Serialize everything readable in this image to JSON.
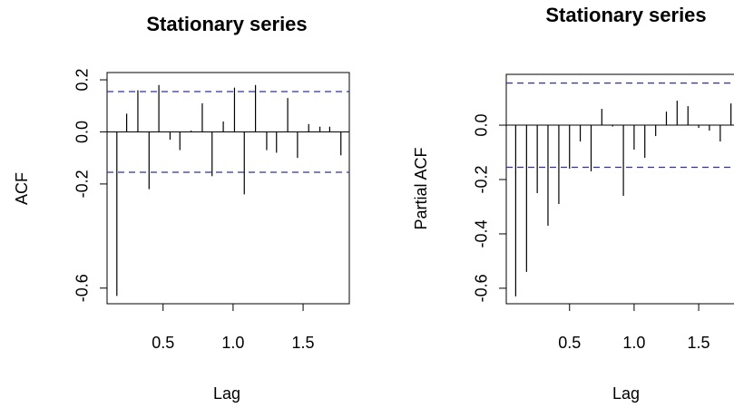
{
  "chart_data": [
    {
      "type": "stem",
      "title": "Stationary series",
      "x_label": "Lag",
      "y_label": "ACF",
      "color": "#000000",
      "bound_color": "#3030a0",
      "x": [
        0.17,
        0.24,
        0.32,
        0.4,
        0.47,
        0.55,
        0.62,
        0.7,
        0.78,
        0.85,
        0.93,
        1.01,
        1.08,
        1.16,
        1.24,
        1.31,
        1.39,
        1.46,
        1.54,
        1.62,
        1.69,
        1.77
      ],
      "values": [
        -0.63,
        0.07,
        0.16,
        -0.22,
        0.18,
        -0.03,
        -0.07,
        0.005,
        0.11,
        -0.17,
        0.04,
        0.17,
        -0.24,
        0.18,
        -0.07,
        -0.08,
        0.13,
        -0.1,
        0.03,
        0.02,
        0.02,
        -0.09
      ],
      "reference_lines": [
        0.155,
        -0.155
      ],
      "xlim": [
        0.1,
        1.83
      ],
      "ylim": [
        -0.66,
        0.228
      ],
      "xticks": [
        {
          "value": 0.5,
          "label": "0.5"
        },
        {
          "value": 1,
          "label": "1.0"
        },
        {
          "value": 1.5,
          "label": "1.5"
        }
      ],
      "yticks": [
        {
          "value": -0.6,
          "label": "-0.6"
        },
        {
          "value": -0.2,
          "label": "-0.2"
        },
        {
          "value": 0,
          "label": "0.0"
        },
        {
          "value": 0.2,
          "label": "0.2"
        }
      ]
    },
    {
      "type": "stem",
      "title": "Stationary series",
      "x_label": "Lag",
      "y_label": "Partial ACF",
      "color": "#000000",
      "bound_color": "#3030a0",
      "x": [
        0.083,
        0.167,
        0.25,
        0.333,
        0.417,
        0.5,
        0.583,
        0.667,
        0.75,
        0.833,
        0.917,
        1,
        1.083,
        1.167,
        1.25,
        1.333,
        1.417,
        1.5,
        1.583,
        1.667,
        1.75
      ],
      "values": [
        -0.63,
        -0.54,
        -0.25,
        -0.37,
        -0.29,
        -0.16,
        -0.06,
        -0.17,
        0.06,
        -0.005,
        -0.26,
        -0.09,
        -0.12,
        -0.04,
        0.05,
        0.09,
        0.07,
        -0.01,
        -0.02,
        -0.06,
        0.08
      ],
      "reference_lines": [
        0.155,
        -0.155
      ],
      "xlim": [
        0.01,
        1.9
      ],
      "ylim": [
        -0.657,
        0.187
      ],
      "xticks": [
        {
          "value": 0.5,
          "label": "0.5"
        },
        {
          "value": 1,
          "label": "1.0"
        },
        {
          "value": 1.5,
          "label": "1.5"
        }
      ],
      "yticks": [
        {
          "value": -0.6,
          "label": "-0.6"
        },
        {
          "value": -0.4,
          "label": "-0.4"
        },
        {
          "value": -0.2,
          "label": "-0.2"
        },
        {
          "value": 0,
          "label": "0.0"
        }
      ]
    }
  ]
}
